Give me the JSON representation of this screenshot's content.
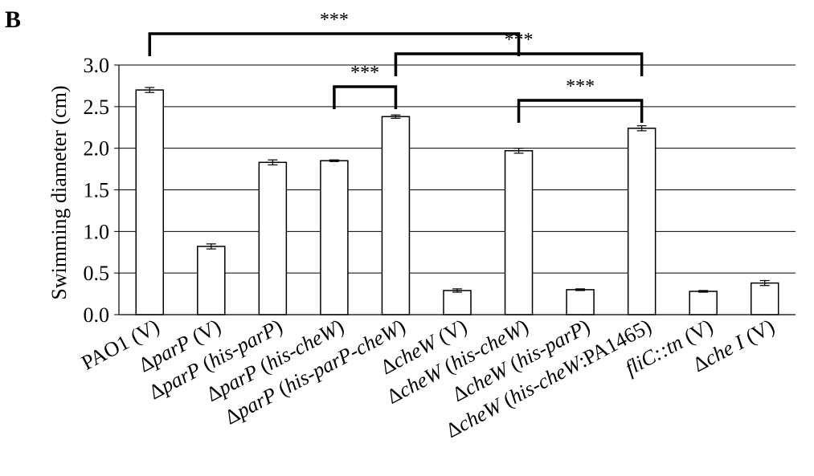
{
  "chart_data": {
    "type": "bar",
    "panel_label": "B",
    "ylabel": "Swimming diameter (cm)",
    "xlabel": "",
    "ylim": [
      0,
      3.0
    ],
    "yticks": [
      "0.0",
      "0.5",
      "1.0",
      "1.5",
      "2.0",
      "2.5",
      "3.0"
    ],
    "grid": true,
    "categories": [
      [
        {
          "t": "PAO1 (V)",
          "i": false
        }
      ],
      [
        {
          "t": "Δ",
          "i": false
        },
        {
          "t": "parP",
          "i": true
        },
        {
          "t": " (V)",
          "i": false
        }
      ],
      [
        {
          "t": "Δ",
          "i": false
        },
        {
          "t": "parP",
          "i": true
        },
        {
          "t": " (",
          "i": false
        },
        {
          "t": "his-parP",
          "i": true
        },
        {
          "t": ")",
          "i": false
        }
      ],
      [
        {
          "t": "Δ",
          "i": false
        },
        {
          "t": "parP",
          "i": true
        },
        {
          "t": " (",
          "i": false
        },
        {
          "t": "his-cheW",
          "i": true
        },
        {
          "t": ")",
          "i": false
        }
      ],
      [
        {
          "t": "Δ",
          "i": false
        },
        {
          "t": "parP",
          "i": true
        },
        {
          "t": " (",
          "i": false
        },
        {
          "t": "his-parP-cheW",
          "i": true
        },
        {
          "t": ")",
          "i": false
        }
      ],
      [
        {
          "t": "Δ",
          "i": false
        },
        {
          "t": "cheW",
          "i": true
        },
        {
          "t": " (V)",
          "i": false
        }
      ],
      [
        {
          "t": "Δ",
          "i": false
        },
        {
          "t": "cheW",
          "i": true
        },
        {
          "t": " (",
          "i": false
        },
        {
          "t": "his-cheW",
          "i": true
        },
        {
          "t": ")",
          "i": false
        }
      ],
      [
        {
          "t": "Δ",
          "i": false
        },
        {
          "t": "cheW",
          "i": true
        },
        {
          "t": " (",
          "i": false
        },
        {
          "t": "his-parP",
          "i": true
        },
        {
          "t": ")",
          "i": false
        }
      ],
      [
        {
          "t": "Δ",
          "i": false
        },
        {
          "t": "cheW",
          "i": true
        },
        {
          "t": " (",
          "i": false
        },
        {
          "t": "his-cheW",
          "i": true
        },
        {
          "t": ":PA1465)",
          "i": false
        }
      ],
      [
        {
          "t": "fliC::tn",
          "i": true
        },
        {
          "t": " (V)",
          "i": false
        }
      ],
      [
        {
          "t": "Δ",
          "i": false
        },
        {
          "t": "che I",
          "i": true
        },
        {
          "t": " (V)",
          "i": false
        }
      ]
    ],
    "values": [
      2.7,
      0.82,
      1.83,
      1.85,
      2.38,
      0.29,
      1.97,
      0.3,
      2.24,
      0.28,
      0.38
    ],
    "errors": [
      0.03,
      0.03,
      0.03,
      0.01,
      0.02,
      0.02,
      0.03,
      0.01,
      0.03,
      0.01,
      0.03
    ],
    "significance": [
      {
        "from": 0,
        "to": 6,
        "label": "***"
      },
      {
        "from": 4,
        "to": 8,
        "label": "***"
      },
      {
        "from": 3,
        "to": 4,
        "label": "***"
      },
      {
        "from": 6,
        "to": 8,
        "label": "***"
      }
    ]
  }
}
